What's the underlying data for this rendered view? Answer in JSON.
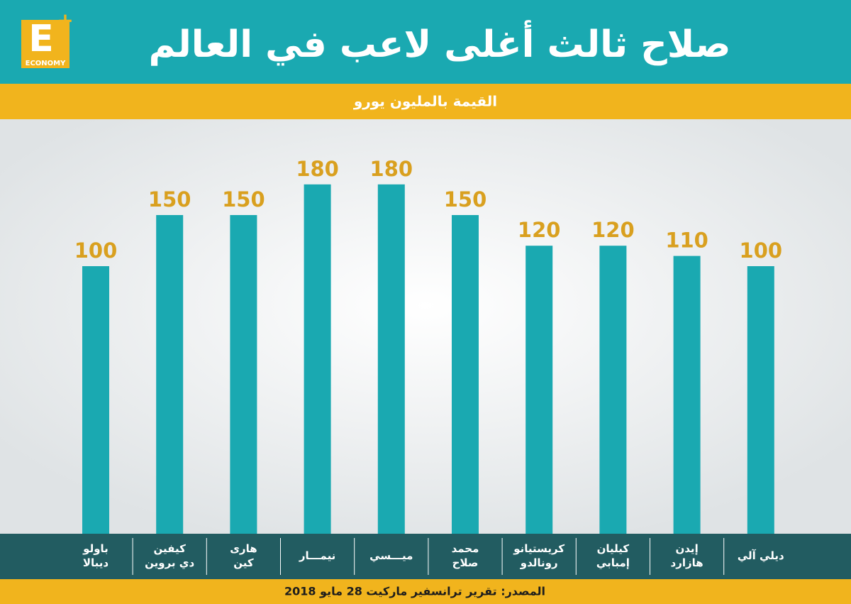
{
  "logo": {
    "letter": "E",
    "plus": "+",
    "name": "ECONOMY"
  },
  "chart_data": {
    "type": "bar",
    "title": "صلاح ثالث أغلى لاعب في العالم",
    "subtitle": "القيمة بالمليون يورو",
    "categories": [
      "باولو\nديبالا",
      "كيفين\nدي بروين",
      "هارى\nكين",
      "نيمـــار",
      "ميـــسي",
      "محمد\nصلاح",
      "كريستيانو\nرونالدو",
      "كيليان\nإمبابي",
      "إيدن\nهازارد",
      "ديلي آلي"
    ],
    "values": [
      100,
      150,
      150,
      180,
      180,
      150,
      120,
      120,
      110,
      100
    ],
    "color": "#1aa9b1",
    "value_label_color": "#d9a01f",
    "source": "المصدر: تقرير ترانسفير ماركيت 28 مايو 2018"
  }
}
